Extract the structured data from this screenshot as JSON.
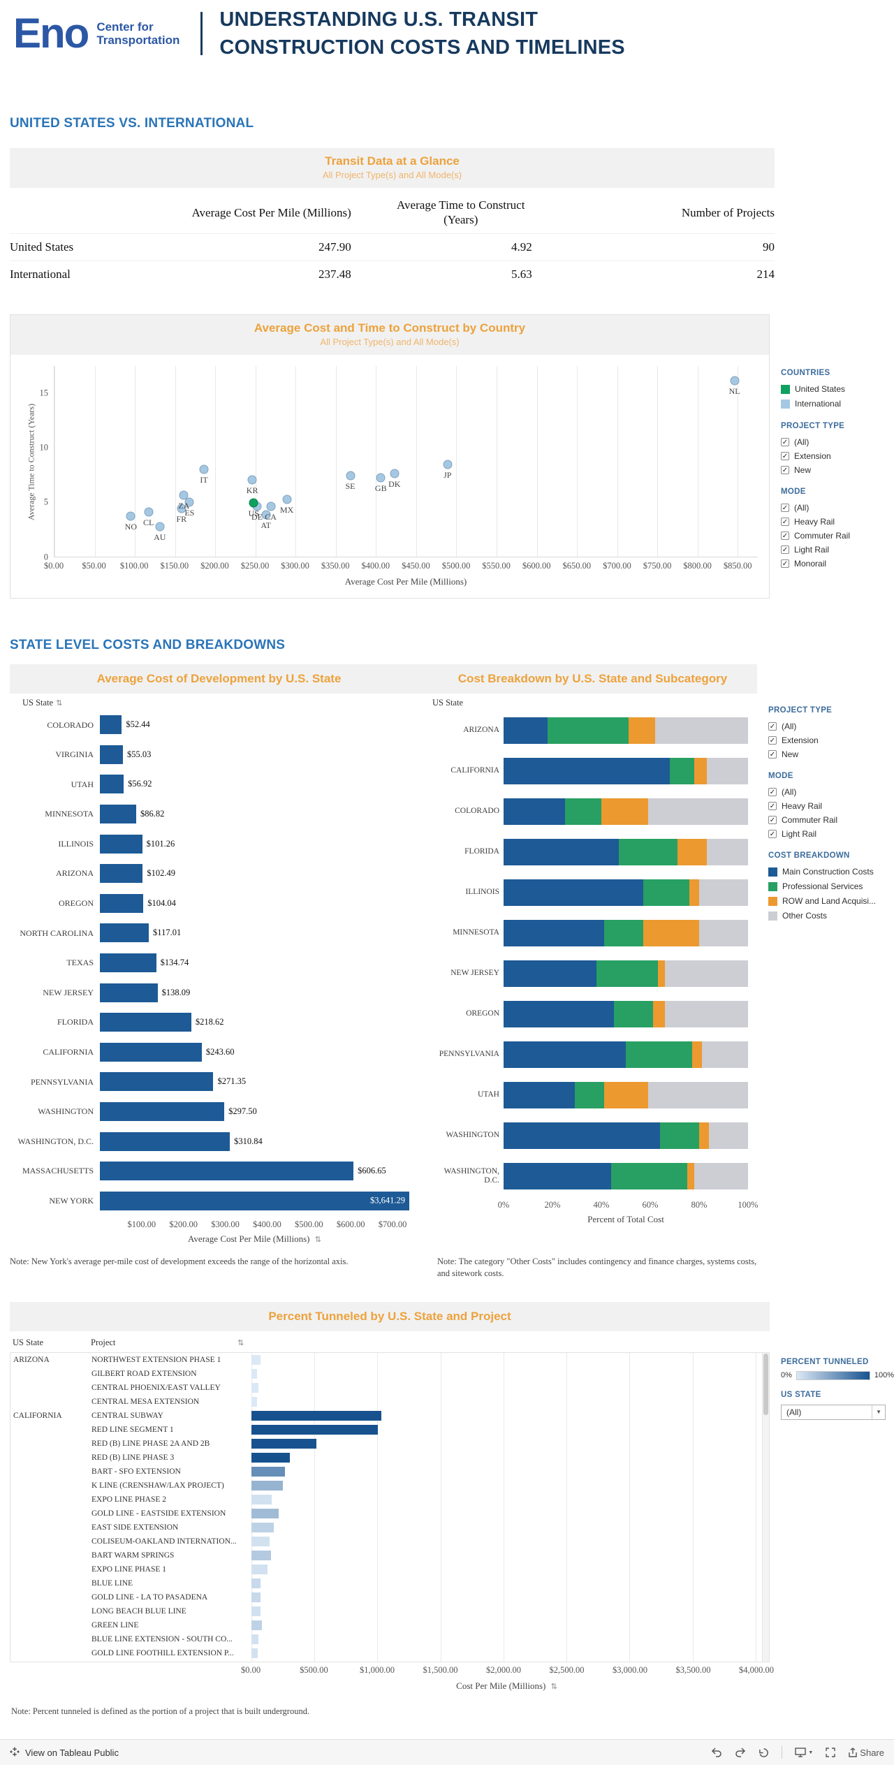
{
  "header": {
    "brand": "Eno",
    "brand_sub1": "Center for",
    "brand_sub2": "Transportation",
    "title1": "UNDERSTANDING U.S. TRANSIT",
    "title2": "CONSTRUCTION COSTS AND TIMELINES"
  },
  "sections": {
    "s1": "UNITED STATES VS. INTERNATIONAL",
    "s2": "STATE LEVEL COSTS AND BREAKDOWNS"
  },
  "icons": {
    "sort": "⇅",
    "check": "✓",
    "caret": "▼"
  },
  "filters1": {
    "countries_title": "COUNTRIES",
    "countries": [
      {
        "label": "United States",
        "color": "#10a05f"
      },
      {
        "label": "International",
        "color": "#a5c8e2"
      }
    ],
    "project_type_title": "PROJECT TYPE",
    "project_types": [
      "(All)",
      "Extension",
      "New"
    ],
    "mode_title": "MODE",
    "modes": [
      "(All)",
      "Heavy Rail",
      "Commuter Rail",
      "Light Rail",
      "Monorail"
    ]
  },
  "filters2": {
    "project_type_title": "PROJECT TYPE",
    "project_types": [
      "(All)",
      "Extension",
      "New"
    ],
    "mode_title": "MODE",
    "modes": [
      "(All)",
      "Heavy Rail",
      "Commuter Rail",
      "Light Rail"
    ],
    "cost_breakdown_title": "COST BREAKDOWN",
    "cost_breakdown": [
      {
        "label": "Main Construction Costs",
        "color": "#1d5a96"
      },
      {
        "label": "Professional Services",
        "color": "#28a063"
      },
      {
        "label": "ROW and Land Acquisi...",
        "color": "#ec9930"
      },
      {
        "label": "Other Costs",
        "color": "#cdcdd4"
      }
    ]
  },
  "filters3": {
    "tunneled_title": "PERCENT TUNNELED",
    "tunneled_min": "0%",
    "tunneled_max": "100%",
    "us_state_title": "US STATE",
    "us_state_value": "(All)"
  },
  "notes": {
    "note1": "Note: New York's average per-mile cost of development exceeds the range of the horizontal axis.",
    "note2": "Note: The category \"Other Costs\" includes contingency and finance charges, systems costs, and sitework costs.",
    "note3": "Note: Percent tunneled is defined as the portion of a project that is built underground."
  },
  "footer": {
    "view_label": "View on Tableau Public",
    "share_label": "Share"
  },
  "chart_data": [
    {
      "type": "table",
      "title": "Transit Data at a Glance",
      "subtitle": "All Project Type(s) and All Mode(s)",
      "columns": [
        "",
        "Average Cost Per Mile (Millions)",
        "Average Time to Construct (Years)",
        "Number of Projects"
      ],
      "rows": [
        [
          "United States",
          "247.90",
          "4.92",
          "90"
        ],
        [
          "International",
          "237.48",
          "5.63",
          "214"
        ]
      ]
    },
    {
      "type": "scatter",
      "title": "Average Cost and Time to Construct by Country",
      "subtitle": "All Project Type(s) and All Mode(s)",
      "xlabel": "Average Cost Per Mile (Millions)",
      "ylabel": "Average Time to Construct (Years)",
      "xlim": [
        0,
        875
      ],
      "ylim": [
        0,
        17.5
      ],
      "xticks": [
        0,
        50,
        100,
        150,
        200,
        250,
        300,
        350,
        400,
        450,
        500,
        550,
        600,
        650,
        700,
        750,
        800,
        850
      ],
      "yticks": [
        0,
        5,
        10,
        15
      ],
      "legend_position": "right",
      "series_colors": {
        "United States": "#10a05f",
        "International": "#a5c8e2"
      },
      "points": [
        {
          "label": "NO",
          "x": 95,
          "y": 3.7,
          "group": "International"
        },
        {
          "label": "CL",
          "x": 117,
          "y": 4.1,
          "group": "International"
        },
        {
          "label": "AU",
          "x": 131,
          "y": 2.7,
          "group": "International"
        },
        {
          "label": "FR",
          "x": 158,
          "y": 4.4,
          "group": "International"
        },
        {
          "label": "ZA",
          "x": 161,
          "y": 5.6,
          "group": "International"
        },
        {
          "label": "ES",
          "x": 168,
          "y": 5.0,
          "group": "International"
        },
        {
          "label": "IT",
          "x": 186,
          "y": 8.0,
          "group": "International"
        },
        {
          "label": "KR",
          "x": 246,
          "y": 7.0,
          "group": "International"
        },
        {
          "label": "US",
          "x": 247.9,
          "y": 4.92,
          "group": "United States"
        },
        {
          "label": "DE",
          "x": 252,
          "y": 4.6,
          "group": "International"
        },
        {
          "label": "AT",
          "x": 263,
          "y": 3.8,
          "group": "International"
        },
        {
          "label": "CA",
          "x": 269,
          "y": 4.6,
          "group": "International"
        },
        {
          "label": "MX",
          "x": 289,
          "y": 5.2,
          "group": "International"
        },
        {
          "label": "SE",
          "x": 368,
          "y": 7.4,
          "group": "International"
        },
        {
          "label": "GB",
          "x": 406,
          "y": 7.2,
          "group": "International"
        },
        {
          "label": "DK",
          "x": 423,
          "y": 7.6,
          "group": "International"
        },
        {
          "label": "JP",
          "x": 489,
          "y": 8.4,
          "group": "International"
        },
        {
          "label": "NL",
          "x": 846,
          "y": 16.1,
          "group": "International"
        }
      ]
    },
    {
      "type": "bar",
      "title": "Average Cost of Development by U.S. State",
      "col_header": "US State",
      "xlabel": "Average Cost Per Mile (Millions)",
      "xlim": [
        0,
        740
      ],
      "xticks": [
        100,
        200,
        300,
        400,
        500,
        600,
        700
      ],
      "bar_color": "#1d5a96",
      "categories": [
        "COLORADO",
        "VIRGINIA",
        "UTAH",
        "MINNESOTA",
        "ILLINOIS",
        "ARIZONA",
        "OREGON",
        "NORTH CAROLINA",
        "TEXAS",
        "NEW JERSEY",
        "FLORIDA",
        "CALIFORNIA",
        "PENNSYLVANIA",
        "WASHINGTON",
        "WASHINGTON, D.C.",
        "MASSACHUSETTS",
        "NEW YORK"
      ],
      "values": [
        52.44,
        55.03,
        56.92,
        86.82,
        101.26,
        102.49,
        104.04,
        117.01,
        134.74,
        138.09,
        218.62,
        243.6,
        271.35,
        297.5,
        310.84,
        606.65,
        3641.29
      ],
      "value_labels": [
        "$52.44",
        "$55.03",
        "$56.92",
        "$86.82",
        "$101.26",
        "$102.49",
        "$104.04",
        "$117.01",
        "$134.74",
        "$138.09",
        "$218.62",
        "$243.60",
        "$271.35",
        "$297.50",
        "$310.84",
        "$606.65",
        "$3,641.29"
      ]
    },
    {
      "type": "bar-stacked",
      "title": "Cost Breakdown by U.S. State and Subcategory",
      "col_header": "US State",
      "xlabel": "Percent of Total Cost",
      "xticks": [
        "0%",
        "20%",
        "40%",
        "60%",
        "80%",
        "100%"
      ],
      "units": "percent",
      "categories": [
        "ARIZONA",
        "CALIFORNIA",
        "COLORADO",
        "FLORIDA",
        "ILLINOIS",
        "MINNESOTA",
        "NEW JERSEY",
        "OREGON",
        "PENNSYLVANIA",
        "UTAH",
        "WASHINGTON",
        "WASHINGTON, D.C."
      ],
      "series": [
        {
          "name": "Main Construction Costs",
          "color": "#1d5a96",
          "values": [
            18,
            68,
            25,
            47,
            57,
            41,
            38,
            45,
            50,
            29,
            64,
            44
          ]
        },
        {
          "name": "Professional Services",
          "color": "#28a063",
          "values": [
            33,
            10,
            15,
            24,
            19,
            16,
            25,
            16,
            27,
            12,
            16,
            31
          ]
        },
        {
          "name": "ROW and Land Acquisition",
          "color": "#ec9930",
          "values": [
            11,
            5,
            19,
            12,
            4,
            23,
            3,
            5,
            4,
            18,
            4,
            3
          ]
        },
        {
          "name": "Other Costs",
          "color": "#cdcdd4",
          "values": [
            38,
            17,
            41,
            17,
            20,
            20,
            34,
            34,
            19,
            41,
            16,
            22
          ]
        }
      ]
    },
    {
      "type": "bar",
      "title": "Percent Tunneled by U.S. State and Project",
      "col_headers": [
        "US State",
        "Project"
      ],
      "xlabel": "Cost Per Mile (Millions)",
      "xlim": [
        0,
        4050
      ],
      "xticks": [
        0,
        500,
        1000,
        1500,
        2000,
        2500,
        3000,
        3500,
        4000
      ],
      "color_scale": {
        "min": "#dbe8f5",
        "max": "#17528f",
        "label": "percent tunneled 0-100"
      },
      "rows": [
        {
          "state": "ARIZONA",
          "project": "NORTHWEST EXTENSION PHASE 1",
          "value": 72,
          "tunneled": 0
        },
        {
          "state": "",
          "project": "GILBERT ROAD EXTENSION",
          "value": 46,
          "tunneled": 0
        },
        {
          "state": "",
          "project": "CENTRAL PHOENIX/EAST VALLEY",
          "value": 57,
          "tunneled": 0
        },
        {
          "state": "",
          "project": "CENTRAL MESA EXTENSION",
          "value": 46,
          "tunneled": 0
        },
        {
          "state": "CALIFORNIA",
          "project": "CENTRAL SUBWAY",
          "value": 1032,
          "tunneled": 100
        },
        {
          "state": "",
          "project": "RED LINE SEGMENT 1",
          "value": 1005,
          "tunneled": 100
        },
        {
          "state": "",
          "project": "RED (B) LINE PHASE 2A AND 2B",
          "value": 516,
          "tunneled": 100
        },
        {
          "state": "",
          "project": "RED (B) LINE PHASE 3",
          "value": 306,
          "tunneled": 100
        },
        {
          "state": "",
          "project": "BART - SFO EXTENSION",
          "value": 268,
          "tunneled": 60
        },
        {
          "state": "",
          "project": "K LINE (CRENSHAW/LAX PROJECT)",
          "value": 252,
          "tunneled": 35
        },
        {
          "state": "",
          "project": "EXPO LINE PHASE 2",
          "value": 158,
          "tunneled": 5
        },
        {
          "state": "",
          "project": "GOLD LINE - EASTSIDE EXTENSION",
          "value": 214,
          "tunneled": 30
        },
        {
          "state": "",
          "project": "EAST SIDE EXTENSION",
          "value": 178,
          "tunneled": 15
        },
        {
          "state": "",
          "project": "COLISEUM-OAKLAND INTERNATION...",
          "value": 146,
          "tunneled": 5
        },
        {
          "state": "",
          "project": "BART WARM SPRINGS",
          "value": 154,
          "tunneled": 20
        },
        {
          "state": "",
          "project": "EXPO LINE PHASE 1",
          "value": 126,
          "tunneled": 5
        },
        {
          "state": "",
          "project": "BLUE LINE",
          "value": 70,
          "tunneled": 10
        },
        {
          "state": "",
          "project": "GOLD LINE - LA TO PASADENA",
          "value": 72,
          "tunneled": 10
        },
        {
          "state": "",
          "project": "LONG BEACH BLUE LINE",
          "value": 70,
          "tunneled": 5
        },
        {
          "state": "",
          "project": "GREEN LINE",
          "value": 82,
          "tunneled": 15
        },
        {
          "state": "",
          "project": "BLUE LINE EXTENSION - SOUTH CO...",
          "value": 55,
          "tunneled": 5
        },
        {
          "state": "",
          "project": "GOLD LINE FOOTHILL EXTENSION P...",
          "value": 48,
          "tunneled": 5
        }
      ]
    }
  ]
}
